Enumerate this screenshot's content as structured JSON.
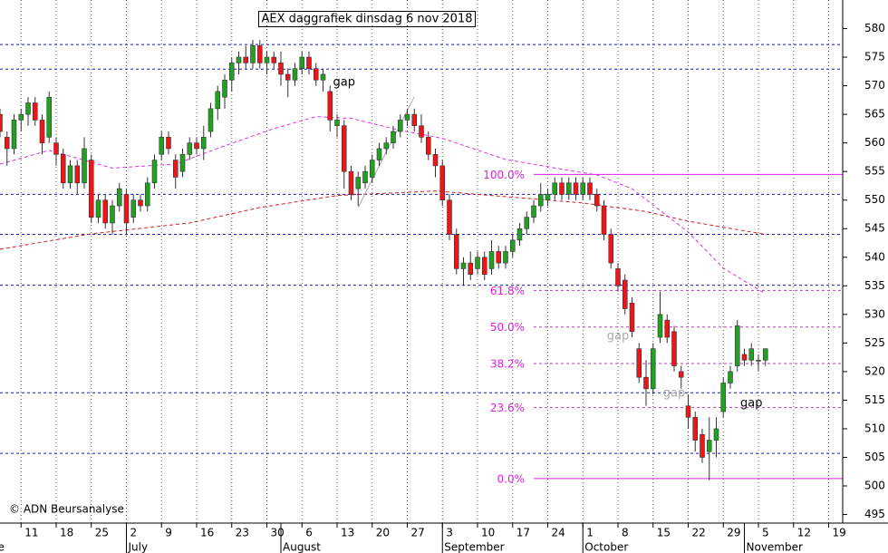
{
  "chart_data": {
    "type": "candlestick",
    "title": "AEX daggrafiek dinsdag 6 nov 2018",
    "copyright": "© ADN Beursanalyse",
    "up_color": "#22a022",
    "down_color": "#ee1418",
    "x": [
      "2018-06-06",
      "2018-06-07",
      "2018-06-08",
      "2018-06-11",
      "2018-06-12",
      "2018-06-13",
      "2018-06-14",
      "2018-06-15",
      "2018-06-18",
      "2018-06-19",
      "2018-06-20",
      "2018-06-21",
      "2018-06-22",
      "2018-06-25",
      "2018-06-26",
      "2018-06-27",
      "2018-06-28",
      "2018-06-29",
      "2018-07-02",
      "2018-07-03",
      "2018-07-04",
      "2018-07-05",
      "2018-07-06",
      "2018-07-09",
      "2018-07-10",
      "2018-07-11",
      "2018-07-12",
      "2018-07-13",
      "2018-07-16",
      "2018-07-17",
      "2018-07-18",
      "2018-07-19",
      "2018-07-20",
      "2018-07-23",
      "2018-07-24",
      "2018-07-25",
      "2018-07-26",
      "2018-07-27",
      "2018-07-30",
      "2018-07-31",
      "2018-08-01",
      "2018-08-02",
      "2018-08-03",
      "2018-08-06",
      "2018-08-07",
      "2018-08-08",
      "2018-08-09",
      "2018-08-10",
      "2018-08-13",
      "2018-08-14",
      "2018-08-15",
      "2018-08-16",
      "2018-08-17",
      "2018-08-20",
      "2018-08-21",
      "2018-08-22",
      "2018-08-23",
      "2018-08-24",
      "2018-08-27",
      "2018-08-28",
      "2018-08-29",
      "2018-08-30",
      "2018-08-31",
      "2018-09-03",
      "2018-09-04",
      "2018-09-05",
      "2018-09-06",
      "2018-09-07",
      "2018-09-10",
      "2018-09-11",
      "2018-09-12",
      "2018-09-13",
      "2018-09-14",
      "2018-09-17",
      "2018-09-18",
      "2018-09-19",
      "2018-09-20",
      "2018-09-21",
      "2018-09-24",
      "2018-09-25",
      "2018-09-26",
      "2018-09-27",
      "2018-09-28",
      "2018-10-01",
      "2018-10-02",
      "2018-10-03",
      "2018-10-04",
      "2018-10-05",
      "2018-10-08",
      "2018-10-09",
      "2018-10-10",
      "2018-10-11",
      "2018-10-12",
      "2018-10-15",
      "2018-10-16",
      "2018-10-17",
      "2018-10-18",
      "2018-10-19",
      "2018-10-22",
      "2018-10-23",
      "2018-10-24",
      "2018-10-25",
      "2018-10-26",
      "2018-10-29",
      "2018-10-30",
      "2018-10-31",
      "2018-11-01",
      "2018-11-02",
      "2018-11-05",
      "2018-11-06"
    ],
    "open": [
      565,
      561,
      559,
      564,
      565,
      567,
      564,
      561,
      560,
      558,
      553,
      556,
      553,
      557,
      547,
      550,
      546,
      549,
      551,
      547,
      550,
      549,
      553,
      558,
      561,
      557,
      555,
      558,
      560,
      559,
      562,
      566,
      568,
      571,
      574,
      575,
      574,
      577,
      574,
      575,
      574,
      572,
      571,
      573,
      575,
      573,
      571,
      569,
      563,
      563,
      555,
      552,
      553,
      554,
      557,
      559,
      560,
      562,
      564,
      565,
      563,
      561,
      558,
      556,
      550,
      544,
      538,
      539,
      538,
      540,
      538,
      541,
      539,
      541,
      543,
      545,
      547,
      549,
      550,
      551,
      553,
      551,
      553,
      551,
      553,
      551,
      549,
      544,
      538,
      536,
      532,
      524,
      519,
      517,
      526,
      529,
      527,
      520,
      514,
      512,
      509,
      506,
      508,
      513,
      518,
      521,
      523,
      522,
      522,
      522
    ],
    "high": [
      566,
      562,
      565,
      566,
      568,
      568,
      565,
      569,
      561,
      559,
      557,
      557,
      561,
      558,
      551,
      551,
      550,
      553,
      552,
      551,
      551,
      554,
      558,
      562,
      562,
      558,
      559,
      561,
      561,
      563,
      567,
      570,
      572,
      575,
      576,
      577,
      578,
      578,
      576,
      576,
      576,
      573,
      574,
      576,
      576,
      574,
      573,
      570,
      565,
      564,
      556,
      555,
      556,
      558,
      560,
      561,
      563,
      565,
      566,
      566,
      565,
      562,
      559,
      557,
      551,
      545,
      540,
      541,
      541,
      541,
      543,
      542,
      542,
      544,
      546,
      548,
      550,
      553,
      552,
      554,
      554,
      554,
      554,
      554,
      554,
      552,
      550,
      545,
      539,
      537,
      533,
      525,
      522,
      525,
      534,
      530,
      528,
      521,
      516,
      513,
      510,
      512,
      512,
      519,
      521,
      529,
      524,
      525,
      523,
      524
    ],
    "low": [
      561,
      556,
      558,
      562,
      563,
      563,
      558,
      560,
      556,
      552,
      552,
      551,
      552,
      546,
      546,
      545,
      544,
      548,
      544,
      546,
      548,
      548,
      552,
      557,
      558,
      552,
      554,
      557,
      558,
      557,
      561,
      564,
      566,
      569,
      572,
      573,
      573,
      573,
      572,
      573,
      570,
      568,
      570,
      572,
      572,
      570,
      569,
      562,
      561,
      552,
      550,
      549,
      552,
      553,
      556,
      558,
      559,
      561,
      563,
      562,
      560,
      557,
      554,
      549,
      543,
      537,
      535,
      536,
      537,
      536,
      537,
      538,
      538,
      540,
      542,
      544,
      546,
      548,
      549,
      550,
      550,
      550,
      550,
      550,
      550,
      548,
      543,
      538,
      534,
      530,
      526,
      518,
      514,
      516,
      525,
      525,
      520,
      517,
      510,
      506,
      504,
      501,
      505,
      512,
      517,
      520,
      521,
      521,
      520,
      521
    ],
    "close": [
      562,
      559,
      564,
      565,
      567,
      564,
      560,
      568,
      558,
      553,
      556,
      553,
      559,
      547,
      550,
      546,
      549,
      552,
      546,
      550,
      549,
      553,
      557,
      561,
      559,
      554,
      558,
      560,
      559,
      561,
      566,
      569,
      571,
      574,
      575,
      574,
      577,
      574,
      575,
      574,
      572,
      571,
      573,
      575,
      573,
      571,
      572,
      564,
      564,
      555,
      551,
      554,
      555,
      557,
      559,
      560,
      562,
      564,
      565,
      563,
      561,
      558,
      556,
      550,
      544,
      538,
      539,
      537,
      540,
      537,
      541,
      539,
      541,
      543,
      545,
      547,
      549,
      551,
      551,
      553,
      551,
      553,
      551,
      553,
      551,
      549,
      544,
      539,
      535,
      531,
      527,
      519,
      517,
      524,
      530,
      526,
      521,
      519,
      512,
      508,
      505,
      508,
      510,
      518,
      520,
      528,
      522,
      524,
      522,
      524
    ],
    "xlim": [
      "2018-06-06",
      "2018-11-21"
    ],
    "ylim": [
      493.5,
      585
    ],
    "yticks": [
      495,
      500,
      505,
      510,
      515,
      520,
      525,
      530,
      535,
      540,
      545,
      550,
      555,
      560,
      565,
      570,
      575,
      580
    ],
    "xticks": [
      {
        "value": "2018-06-11",
        "label": "11"
      },
      {
        "value": "2018-06-18",
        "label": "18"
      },
      {
        "value": "2018-06-25",
        "label": "25"
      },
      {
        "value": "2018-07-02",
        "label": "2"
      },
      {
        "value": "2018-07-09",
        "label": "9"
      },
      {
        "value": "2018-07-16",
        "label": "16"
      },
      {
        "value": "2018-07-23",
        "label": "23"
      },
      {
        "value": "2018-07-30",
        "label": "30"
      },
      {
        "value": "2018-08-06",
        "label": "6"
      },
      {
        "value": "2018-08-13",
        "label": "13"
      },
      {
        "value": "2018-08-20",
        "label": "20"
      },
      {
        "value": "2018-08-27",
        "label": "27"
      },
      {
        "value": "2018-09-03",
        "label": "3"
      },
      {
        "value": "2018-09-10",
        "label": "10"
      },
      {
        "value": "2018-09-17",
        "label": "17"
      },
      {
        "value": "2018-09-24",
        "label": "24"
      },
      {
        "value": "2018-10-01",
        "label": "1"
      },
      {
        "value": "2018-10-08",
        "label": "8"
      },
      {
        "value": "2018-10-15",
        "label": "15"
      },
      {
        "value": "2018-10-22",
        "label": "22"
      },
      {
        "value": "2018-10-29",
        "label": "29"
      },
      {
        "value": "2018-11-05",
        "label": "5"
      },
      {
        "value": "2018-11-12",
        "label": "12"
      },
      {
        "value": "2018-11-19",
        "label": "19"
      }
    ],
    "months": [
      {
        "value": "2018-06-01",
        "label": "June"
      },
      {
        "value": "2018-07-01",
        "label": "July"
      },
      {
        "value": "2018-08-01",
        "label": "August"
      },
      {
        "value": "2018-09-01",
        "label": "September"
      },
      {
        "value": "2018-10-01",
        "label": "October"
      },
      {
        "value": "2018-11-01",
        "label": "November"
      }
    ],
    "grid": true,
    "levels": {
      "color": "#1a1aa0",
      "values": [
        577.2,
        572.9,
        551,
        544,
        535.1,
        516.3,
        505.7
      ]
    },
    "fibonacci": {
      "color": "#dd22dd",
      "start": "2018-09-20",
      "values": [
        554.5,
        534.2,
        527.8,
        521.4,
        513.7,
        501.3
      ],
      "labels": [
        "100.0%",
        "61.8%",
        "50.0%",
        "38.2%",
        "23.6%",
        "0.0%"
      ]
    },
    "lines": [
      {
        "color": "#cc2222",
        "x": [
          "2018-06-06",
          "2018-06-25",
          "2018-07-13",
          "2018-07-27",
          "2018-08-13",
          "2018-08-31",
          "2018-09-19",
          "2018-10-01",
          "2018-10-12",
          "2018-10-22",
          "2018-11-06"
        ],
        "values": [
          541.4,
          544.1,
          546,
          548.7,
          550.8,
          551.6,
          550.3,
          549.5,
          548,
          546.3,
          544
        ]
      },
      {
        "color": "#dd33dd",
        "x": [
          "2018-06-06",
          "2018-06-15",
          "2018-06-28",
          "2018-07-11",
          "2018-07-20",
          "2018-07-31",
          "2018-08-08",
          "2018-08-15",
          "2018-08-24",
          "2018-09-03",
          "2018-09-14",
          "2018-09-28",
          "2018-10-03",
          "2018-10-10",
          "2018-10-22",
          "2018-10-29",
          "2018-11-06"
        ],
        "values": [
          556.3,
          558.7,
          555.6,
          556.3,
          559.5,
          562.5,
          564.6,
          564.3,
          562.2,
          560.8,
          557.1,
          555,
          554.4,
          552,
          544.4,
          538.1,
          533.6
        ]
      },
      {
        "color": "#aaaaaa",
        "x": [
          "2018-08-16",
          "2018-08-28"
        ],
        "values": [
          548.7,
          568.1
        ]
      }
    ],
    "annotations": [
      {
        "text": "gap",
        "x": "2018-08-14",
        "y": 570.6,
        "color": "#000000"
      },
      {
        "text": "gap",
        "x": "2018-10-08",
        "y": 526.2,
        "color": "#aaaaaa"
      },
      {
        "text": "gap",
        "x": "2018-10-18",
        "y": 516.2,
        "color": "#aaaaaa"
      },
      {
        "text": "gap",
        "x": "2018-11-02",
        "y": 514.4,
        "color": "#000000"
      }
    ]
  }
}
